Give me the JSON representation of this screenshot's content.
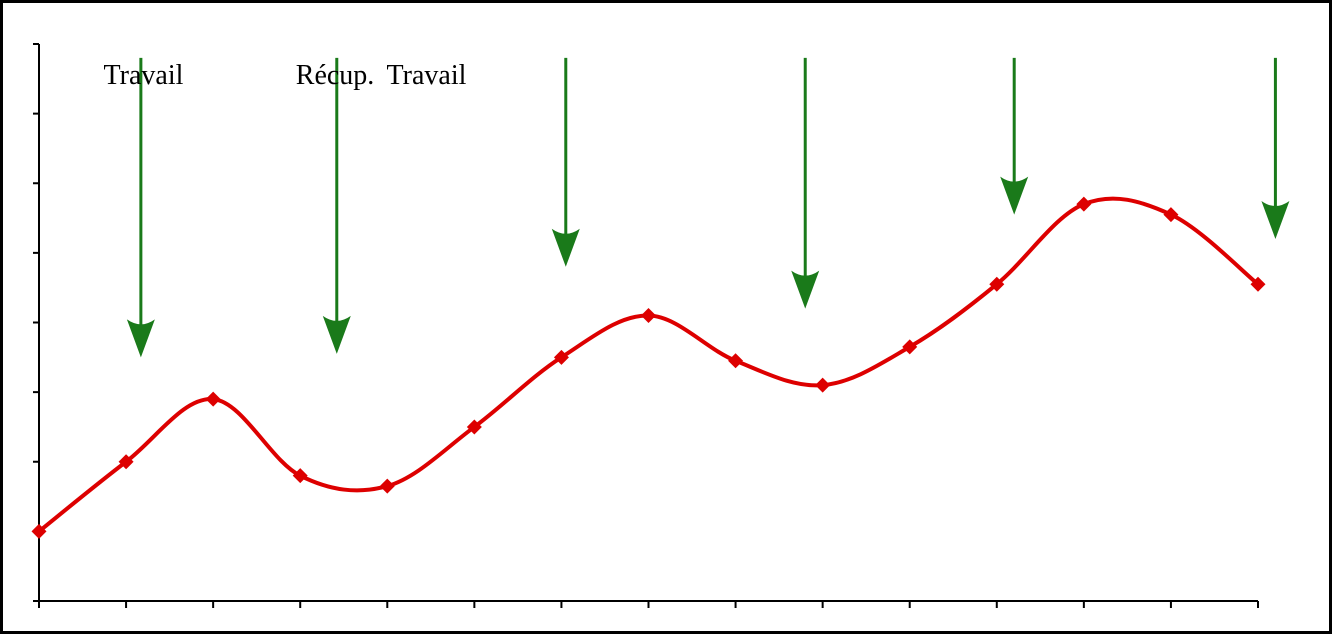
{
  "chart_data": {
    "type": "line",
    "title": "",
    "xlabel": "",
    "ylabel": "",
    "x": [
      0,
      1,
      2,
      3,
      4,
      5,
      6,
      7,
      8,
      9,
      10,
      11,
      12,
      13,
      14
    ],
    "xlim": [
      0,
      14
    ],
    "ylim": [
      0,
      8
    ],
    "y_ticks": [
      0,
      1,
      2,
      3,
      4,
      5,
      6,
      7,
      8
    ],
    "grid": false,
    "legend": "none",
    "series": [
      {
        "color": "#dd0000",
        "marker": "diamond",
        "smooth": true,
        "values": [
          1.0,
          2.0,
          2.9,
          1.8,
          1.65,
          2.5,
          3.5,
          4.1,
          3.45,
          3.1,
          3.65,
          4.55,
          5.7,
          5.55,
          4.55
        ]
      }
    ],
    "annotations": {
      "labels": [
        {
          "text": "Travail",
          "x": 1.2
        },
        {
          "text": "Récup.",
          "x": 3.4
        },
        {
          "text": "Travail",
          "x": 4.45
        }
      ],
      "arrow_color": "#1a7a1a",
      "arrows": [
        {
          "x": 1.17,
          "from_y": 7.8,
          "to_y": 3.5
        },
        {
          "x": 3.42,
          "from_y": 7.8,
          "to_y": 3.55
        },
        {
          "x": 6.05,
          "from_y": 7.8,
          "to_y": 4.8
        },
        {
          "x": 8.8,
          "from_y": 7.8,
          "to_y": 4.2
        },
        {
          "x": 11.2,
          "from_y": 7.8,
          "to_y": 5.55
        },
        {
          "x": 14.2,
          "from_y": 7.8,
          "to_y": 5.2
        }
      ]
    }
  }
}
